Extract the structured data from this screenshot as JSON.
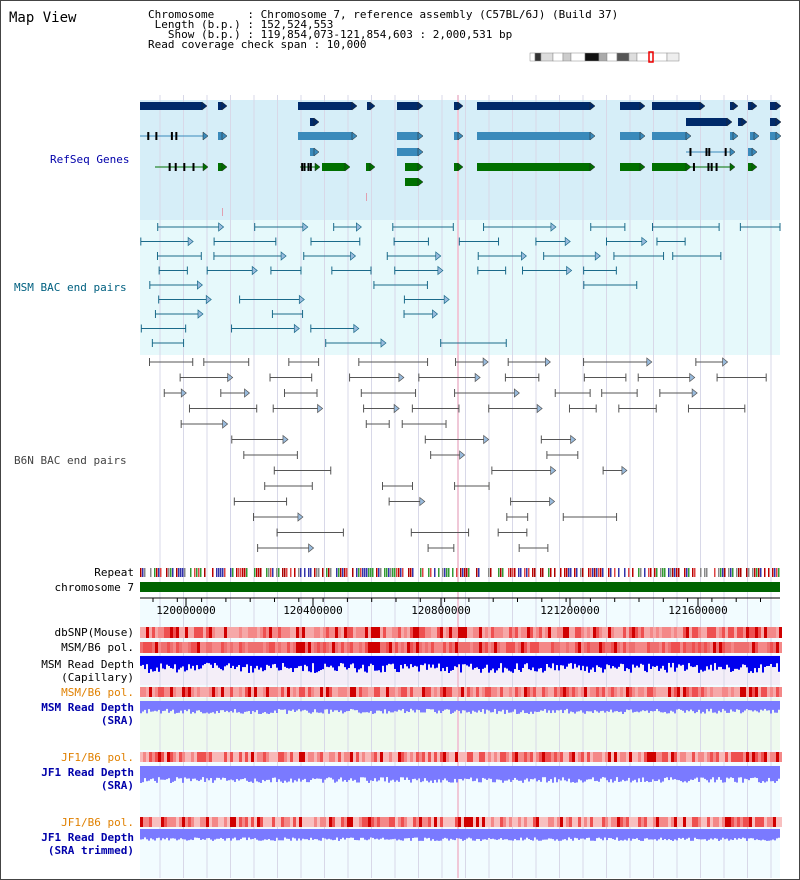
{
  "title": "Map View",
  "info": {
    "line1": "Chromosome     : Chromosome 7, reference assembly (C57BL/6J) (Build 37)",
    "line2": " Length (b.p.) : 152,524,553",
    "line3": "   Show (b.p.) : 119,854,073-121,854,603 : 2,000,531 bp",
    "line4": "Read coverage check span : 10,000"
  },
  "tracks": {
    "refseq": "RefSeq Genes",
    "msm_bac": "MSM BAC end pairs",
    "b6n_bac": "B6N BAC end pairs",
    "repeat": "Repeat",
    "chromosome": "chromosome 7",
    "dbsnp": "dbSNP(Mouse)",
    "msm_b6_pol1": "MSM/B6 pol.",
    "msm_read_depth_cap_1": "MSM Read Depth",
    "msm_read_depth_cap_2": "(Capillary)",
    "msm_b6_pol2": "MSM/B6 pol.",
    "msm_read_depth_sra_1": "MSM Read Depth",
    "msm_read_depth_sra_2": "(SRA)",
    "jf1_b6_pol1": "JF1/B6 pol.",
    "jf1_read_depth_sra_1": "JF1 Read Depth",
    "jf1_read_depth_sra_2": "(SRA)",
    "jf1_b6_pol2": "JF1/B6 pol.",
    "jf1_read_depth_trim_1": "JF1 Read Depth",
    "jf1_read_depth_trim_2": "(SRA trimmed)"
  },
  "axis": {
    "ticks": [
      "120000000",
      "120400000",
      "120800000",
      "121200000",
      "121600000"
    ]
  },
  "colors": {
    "refseq_label": "#0000aa",
    "msm_label": "#006080",
    "b6n_label": "#444444",
    "orange_label": "#e08000",
    "blue_label": "#0000aa",
    "refseq_bg": "#d6eef8",
    "msm_bg": "#e6f9fb",
    "chrom_green": "#006400",
    "depth_dark": "#0000ee",
    "depth_light": "#7a7aff",
    "gene_dark": "#002a6a",
    "gene_mid": "#3a8abb",
    "gene_green": "#007000"
  }
}
